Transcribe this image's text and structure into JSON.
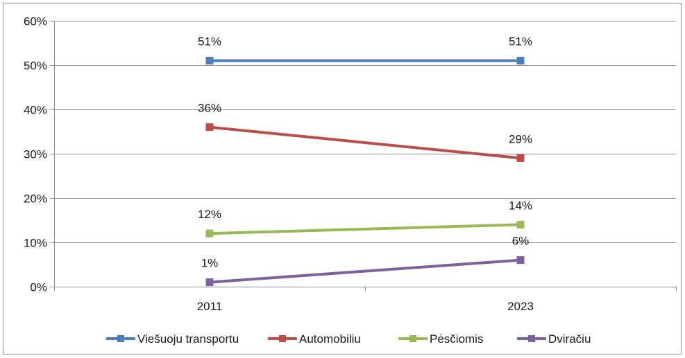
{
  "chart_data": {
    "type": "line",
    "title": "",
    "xlabel": "",
    "ylabel": "",
    "categories": [
      "2011",
      "2023"
    ],
    "ylim": [
      0,
      60
    ],
    "yticks": [
      0,
      10,
      20,
      30,
      40,
      50,
      60
    ],
    "ytick_labels": [
      "0%",
      "10%",
      "20%",
      "30%",
      "40%",
      "50%",
      "60%"
    ],
    "grid": true,
    "legend_position": "bottom",
    "series": [
      {
        "name": "Viešuoju transportu",
        "color": "#4a7ebb",
        "values": [
          51,
          51
        ],
        "labels": [
          "51%",
          "51%"
        ]
      },
      {
        "name": "Automobiliu",
        "color": "#be4b48",
        "values": [
          36,
          29
        ],
        "labels": [
          "36%",
          "29%"
        ]
      },
      {
        "name": "Pėsčiomis",
        "color": "#98b954",
        "values": [
          12,
          14
        ],
        "labels": [
          "12%",
          "14%"
        ]
      },
      {
        "name": "Dviračiu",
        "color": "#7d60a0",
        "values": [
          1,
          6
        ],
        "labels": [
          "1%",
          "6%"
        ]
      }
    ]
  }
}
